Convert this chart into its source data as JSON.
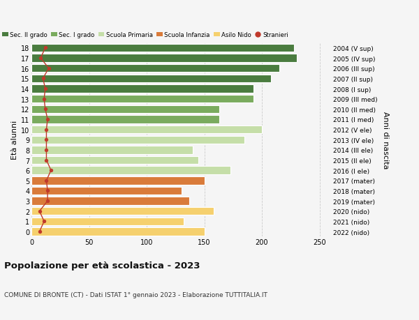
{
  "ages": [
    18,
    17,
    16,
    15,
    14,
    13,
    12,
    11,
    10,
    9,
    8,
    7,
    6,
    5,
    4,
    3,
    2,
    1,
    0
  ],
  "years": [
    "2004 (V sup)",
    "2005 (IV sup)",
    "2006 (III sup)",
    "2007 (II sup)",
    "2008 (I sup)",
    "2009 (III med)",
    "2010 (II med)",
    "2011 (I med)",
    "2012 (V ele)",
    "2013 (IV ele)",
    "2014 (III ele)",
    "2015 (II ele)",
    "2016 (I ele)",
    "2017 (mater)",
    "2018 (mater)",
    "2019 (mater)",
    "2020 (nido)",
    "2021 (nido)",
    "2022 (nido)"
  ],
  "values": [
    228,
    230,
    215,
    208,
    193,
    193,
    163,
    163,
    200,
    185,
    140,
    145,
    173,
    150,
    130,
    137,
    158,
    132,
    150
  ],
  "stranieri": [
    12,
    8,
    15,
    10,
    12,
    11,
    12,
    14,
    13,
    13,
    13,
    13,
    17,
    13,
    14,
    14,
    7,
    11,
    7
  ],
  "bar_colors": [
    "#4a7c3f",
    "#4a7c3f",
    "#4a7c3f",
    "#4a7c3f",
    "#4a7c3f",
    "#7aab5e",
    "#7aab5e",
    "#7aab5e",
    "#c5dea8",
    "#c5dea8",
    "#c5dea8",
    "#c5dea8",
    "#c5dea8",
    "#d97b3a",
    "#d97b3a",
    "#d97b3a",
    "#f5d06e",
    "#f5d06e",
    "#f5d06e"
  ],
  "legend_labels": [
    "Sec. II grado",
    "Sec. I grado",
    "Scuola Primaria",
    "Scuola Infanzia",
    "Asilo Nido",
    "Stranieri"
  ],
  "legend_colors": [
    "#4a7c3f",
    "#7aab5e",
    "#c5dea8",
    "#d97b3a",
    "#f5d06e",
    "#c0392b"
  ],
  "stranieri_color": "#c0392b",
  "ylabel_left": "Età alunni",
  "ylabel_right": "Anni di nascita",
  "title": "Popolazione per età scolastica - 2023",
  "subtitle": "COMUNE DI BRONTE (CT) - Dati ISTAT 1° gennaio 2023 - Elaborazione TUTTITALIA.IT",
  "xlim": [
    0,
    260
  ],
  "bar_height": 0.78,
  "bg_color": "#f5f5f5",
  "grid_color": "#cccccc"
}
